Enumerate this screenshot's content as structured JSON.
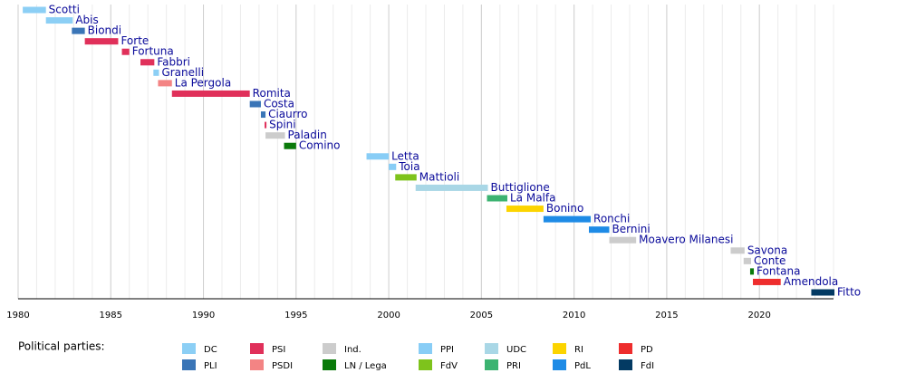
{
  "chart_data": {
    "type": "timeline",
    "xlim": [
      1980,
      2024
    ],
    "xticks": [
      1980,
      1985,
      1990,
      1995,
      2000,
      2005,
      2010,
      2015,
      2020
    ],
    "minor_grid_step": 1,
    "grid": true,
    "legend_title": "Political parties:",
    "series": [
      {
        "name": "DC",
        "color": "#8ccff5"
      },
      {
        "name": "PLI",
        "color": "#3a75b7"
      },
      {
        "name": "PSI",
        "color": "#e0305a"
      },
      {
        "name": "PSDI",
        "color": "#f38484"
      },
      {
        "name": "Ind.",
        "color": "#cccccc"
      },
      {
        "name": "LN / Lega",
        "color": "#0a7a0a"
      },
      {
        "name": "PPI",
        "color": "#88cdf6"
      },
      {
        "name": "FdV",
        "color": "#7ec31c"
      },
      {
        "name": "UDC",
        "color": "#a9d7e6"
      },
      {
        "name": "PRI",
        "color": "#3cb371"
      },
      {
        "name": "RI",
        "color": "#fcd400"
      },
      {
        "name": "PdL",
        "color": "#1e8be6"
      },
      {
        "name": "PD",
        "color": "#ee2d2d"
      },
      {
        "name": "FdI",
        "color": "#033a63"
      }
    ],
    "bars": [
      {
        "label": "Scotti",
        "party": "DC",
        "start": 1980.25,
        "end": 1981.5
      },
      {
        "label": "Abis",
        "party": "DC",
        "start": 1981.5,
        "end": 1982.95
      },
      {
        "label": "Biondi",
        "party": "PLI",
        "start": 1982.9,
        "end": 1983.6
      },
      {
        "label": "Forte",
        "party": "PSI",
        "start": 1983.6,
        "end": 1985.4
      },
      {
        "label": "Fortuna",
        "party": "PSI",
        "start": 1985.6,
        "end": 1986.0
      },
      {
        "label": "Fabbri",
        "party": "PSI",
        "start": 1986.6,
        "end": 1987.35
      },
      {
        "label": "Granelli",
        "party": "DC",
        "start": 1987.3,
        "end": 1987.6
      },
      {
        "label": "La Pergola",
        "party": "PSDI",
        "start": 1987.55,
        "end": 1988.3
      },
      {
        "label": "Romita",
        "party": "PSI",
        "start": 1988.3,
        "end": 1992.5
      },
      {
        "label": "Costa",
        "party": "PLI",
        "start": 1992.5,
        "end": 1993.1
      },
      {
        "label": "Ciaurro",
        "party": "PLI",
        "start": 1993.1,
        "end": 1993.35
      },
      {
        "label": "Spini",
        "party": "PSI",
        "start": 1993.3,
        "end": 1993.4
      },
      {
        "label": "Paladin",
        "party": "Ind.",
        "start": 1993.35,
        "end": 1994.4
      },
      {
        "label": "Comino",
        "party": "LN / Lega",
        "start": 1994.35,
        "end": 1995.0
      },
      {
        "label": "Letta",
        "party": "PPI",
        "start": 1998.8,
        "end": 2000.0
      },
      {
        "label": "Toia",
        "party": "PPI",
        "start": 2000.0,
        "end": 2000.4
      },
      {
        "label": "Mattioli",
        "party": "FdV",
        "start": 2000.35,
        "end": 2001.5
      },
      {
        "label": "Buttiglione",
        "party": "UDC",
        "start": 2001.45,
        "end": 2005.35
      },
      {
        "label": "La Malfa",
        "party": "PRI",
        "start": 2005.3,
        "end": 2006.4
      },
      {
        "label": "Bonino",
        "party": "RI",
        "start": 2006.35,
        "end": 2008.35
      },
      {
        "label": "Ronchi",
        "party": "PdL",
        "start": 2008.35,
        "end": 2010.9
      },
      {
        "label": "Bernini",
        "party": "PdL",
        "start": 2010.8,
        "end": 2011.9
      },
      {
        "label": "Moavero Milanesi",
        "party": "Ind.",
        "start": 2011.9,
        "end": 2013.35
      },
      {
        "label": "Savona",
        "party": "Ind.",
        "start": 2018.45,
        "end": 2019.2
      },
      {
        "label": "Conte",
        "party": "Ind.",
        "start": 2019.15,
        "end": 2019.55
      },
      {
        "label": "Fontana",
        "party": "LN / Lega",
        "start": 2019.5,
        "end": 2019.7
      },
      {
        "label": "Amendola",
        "party": "PD",
        "start": 2019.65,
        "end": 2021.15
      },
      {
        "label": "Fitto",
        "party": "FdI",
        "start": 2022.8,
        "end": 2024.05
      }
    ]
  }
}
